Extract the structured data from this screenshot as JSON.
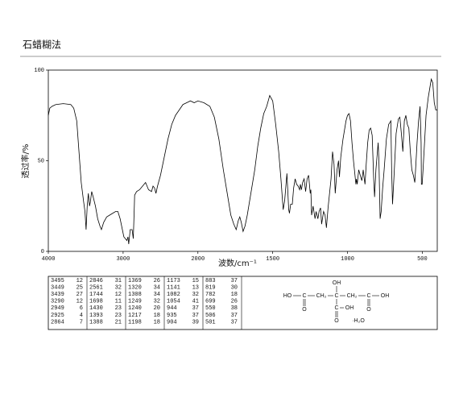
{
  "header": {
    "title": "石蜡糊法"
  },
  "chart_data": {
    "type": "line",
    "x_label": "波数/cm⁻¹",
    "y_label": "透过率/%",
    "xlim": [
      4000,
      400
    ],
    "xticks": [
      4000,
      3000,
      2000,
      1500,
      1000,
      500
    ],
    "ylim": [
      0,
      100
    ],
    "yticks": [
      0,
      50,
      100
    ],
    "color": "#000000",
    "x": [
      4000,
      3980,
      3950,
      3900,
      3800,
      3700,
      3660,
      3620,
      3590,
      3560,
      3530,
      3510,
      3495,
      3480,
      3465,
      3449,
      3439,
      3420,
      3400,
      3370,
      3340,
      3310,
      3290,
      3260,
      3220,
      3180,
      3140,
      3100,
      3070,
      3040,
      3010,
      2990,
      2970,
      2949,
      2935,
      2925,
      2905,
      2880,
      2864,
      2850,
      2846,
      2820,
      2780,
      2740,
      2700,
      2660,
      2620,
      2600,
      2580,
      2561,
      2540,
      2500,
      2450,
      2400,
      2350,
      2300,
      2250,
      2200,
      2150,
      2100,
      2050,
      2000,
      1960,
      1920,
      1890,
      1860,
      1830,
      1800,
      1780,
      1760,
      1744,
      1730,
      1720,
      1710,
      1698,
      1685,
      1670,
      1650,
      1620,
      1600,
      1580,
      1560,
      1540,
      1520,
      1500,
      1480,
      1460,
      1445,
      1430,
      1420,
      1405,
      1393,
      1388,
      1380,
      1369,
      1360,
      1350,
      1340,
      1330,
      1320,
      1315,
      1308,
      1300,
      1290,
      1280,
      1270,
      1260,
      1249,
      1245,
      1240,
      1230,
      1217,
      1210,
      1198,
      1190,
      1180,
      1173,
      1160,
      1150,
      1141,
      1130,
      1110,
      1100,
      1090,
      1082,
      1070,
      1060,
      1054,
      1045,
      1030,
      1010,
      1000,
      990,
      980,
      970,
      960,
      950,
      944,
      940,
      935,
      925,
      915,
      904,
      895,
      888,
      883,
      875,
      865,
      855,
      845,
      835,
      825,
      819,
      810,
      800,
      795,
      790,
      782,
      775,
      765,
      755,
      740,
      725,
      710,
      705,
      699,
      690,
      675,
      660,
      650,
      640,
      630,
      620,
      610,
      600,
      590,
      580,
      570,
      560,
      550,
      545,
      535,
      525,
      515,
      508,
      506,
      501,
      495,
      485,
      475,
      460,
      450,
      440,
      430,
      420,
      410,
      400
    ],
    "values": [
      75,
      79,
      80,
      81,
      81.5,
      81,
      79,
      72,
      55,
      38,
      28,
      22,
      12,
      25,
      32,
      25,
      27,
      33,
      30,
      25,
      18,
      14,
      12,
      16,
      19,
      20,
      21,
      22,
      22,
      18,
      12,
      8,
      7,
      6,
      8,
      4,
      12,
      12,
      7,
      25,
      31,
      33,
      34,
      36,
      38,
      34,
      33,
      36,
      35,
      32,
      36,
      42,
      52,
      62,
      70,
      75,
      78,
      81,
      82,
      83,
      82,
      83,
      82,
      80,
      74,
      62,
      45,
      30,
      20,
      15,
      12,
      17,
      19,
      16,
      11,
      14,
      20,
      30,
      45,
      58,
      68,
      76,
      80,
      86,
      83,
      70,
      55,
      40,
      23,
      28,
      43,
      23,
      21,
      26,
      26,
      35,
      40,
      37,
      36,
      34,
      37,
      34,
      38,
      40,
      33,
      40,
      42,
      32,
      34,
      20,
      25,
      18,
      22,
      18,
      22,
      24,
      15,
      22,
      20,
      13,
      24,
      40,
      55,
      48,
      32,
      45,
      50,
      41,
      52,
      62,
      72,
      75,
      76,
      72,
      60,
      50,
      42,
      37,
      40,
      37,
      45,
      42,
      39,
      45,
      40,
      37,
      48,
      60,
      67,
      68,
      64,
      40,
      30,
      45,
      55,
      60,
      50,
      18,
      22,
      35,
      45,
      62,
      70,
      72,
      45,
      26,
      40,
      65,
      73,
      74,
      65,
      55,
      72,
      75,
      70,
      68,
      55,
      45,
      42,
      38,
      45,
      60,
      72,
      80,
      60,
      37,
      37,
      45,
      60,
      75,
      85,
      90,
      95,
      93,
      82,
      78,
      78
    ]
  },
  "peak_table": {
    "columns": [
      [
        [
          "3495",
          "12"
        ],
        [
          "3449",
          "25"
        ],
        [
          "3439",
          "27"
        ],
        [
          "3290",
          "12"
        ],
        [
          "2949",
          "6"
        ],
        [
          "2925",
          "4"
        ],
        [
          "2864",
          "7"
        ]
      ],
      [
        [
          "2846",
          "31"
        ],
        [
          "2561",
          "32"
        ],
        [
          "1744",
          "12"
        ],
        [
          "1698",
          "11"
        ],
        [
          "1430",
          "23"
        ],
        [
          "1393",
          "23"
        ],
        [
          "1388",
          "21"
        ]
      ],
      [
        [
          "1369",
          "26"
        ],
        [
          "1320",
          "34"
        ],
        [
          "1308",
          "34"
        ],
        [
          "1249",
          "32"
        ],
        [
          "1240",
          "20"
        ],
        [
          "1217",
          "18"
        ],
        [
          "1198",
          "18"
        ]
      ],
      [
        [
          "1173",
          "15"
        ],
        [
          "1141",
          "13"
        ],
        [
          "1082",
          "32"
        ],
        [
          "1054",
          "41"
        ],
        [
          "944",
          "37"
        ],
        [
          "935",
          "37"
        ],
        [
          "904",
          "39"
        ]
      ],
      [
        [
          "883",
          "37"
        ],
        [
          "819",
          "30"
        ],
        [
          "782",
          "18"
        ],
        [
          "699",
          "26"
        ],
        [
          "550",
          "38"
        ],
        [
          "506",
          "37"
        ],
        [
          "501",
          "37"
        ]
      ]
    ]
  },
  "structure": {
    "atoms": [
      "HO",
      "C",
      "CH₂",
      "C",
      "CH₂",
      "C",
      "OH",
      "OH",
      "O",
      "C",
      "OH",
      "O",
      "O",
      "·H₂O"
    ]
  }
}
